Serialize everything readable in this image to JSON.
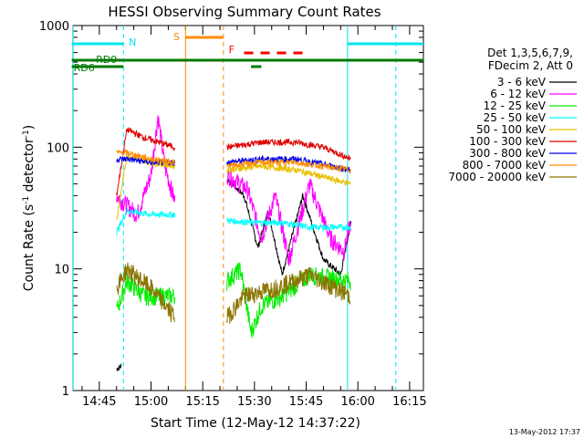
{
  "chart_data": {
    "type": "line",
    "title": "HESSI Observing Summary Count Rates",
    "xlabel": "Start Time (12-May-12 14:37:22)",
    "ylabel_main": "Count Rate (s",
    "ylabel_sup1": "-1",
    "ylabel_mid": " detector",
    "ylabel_sup2": "-1",
    "ylabel_end": ")",
    "yscale": "log",
    "ylim": [
      1,
      1000
    ],
    "xlim_minutes": [
      "14:37",
      "16:19"
    ],
    "x_ticks": [
      "14:45",
      "15:00",
      "15:15",
      "15:30",
      "15:45",
      "16:00",
      "16:15"
    ],
    "y_ticks": [
      "1",
      "10",
      "100",
      "1000"
    ],
    "footer_date": "13-May-2012 17:37",
    "legend": {
      "header1": "Det 1,3,5,6,7,9,",
      "header2": "FDecim 2, Att 0",
      "placement": "right"
    },
    "series": [
      {
        "name": "3 - 6 keV",
        "color": "#000000"
      },
      {
        "name": "6 - 12 keV",
        "color": "#ff00ff"
      },
      {
        "name": "12 - 25 keV",
        "color": "#00ee00"
      },
      {
        "name": "25 - 50 keV",
        "color": "#00ffff"
      },
      {
        "name": "50 - 100 keV",
        "color": "#e8c000"
      },
      {
        "name": "100 - 300 keV",
        "color": "#e00000"
      },
      {
        "name": "300 - 800 keV",
        "color": "#0000ee"
      },
      {
        "name": "800 - 7000 keV",
        "color": "#ff8c00"
      },
      {
        "name": "7000 - 20000 keV",
        "color": "#8b7500"
      }
    ],
    "flags": {
      "N": "N",
      "S": "S",
      "F": "F",
      "RD0": "RD0",
      "RD6": "RD6"
    },
    "flag_colors": {
      "N": "#00e5ee",
      "S": "#ff8c00",
      "F": "#ff0000",
      "RD": "#007a00"
    }
  }
}
